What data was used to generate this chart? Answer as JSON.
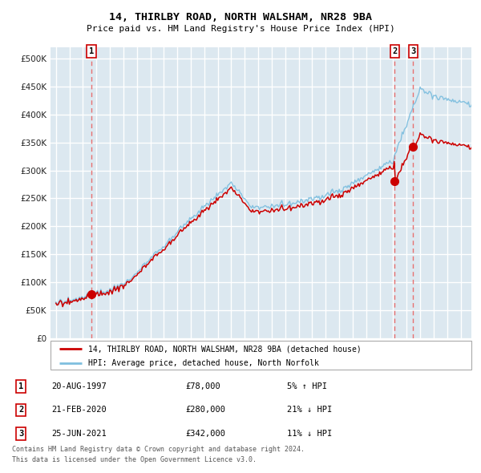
{
  "title": "14, THIRLBY ROAD, NORTH WALSHAM, NR28 9BA",
  "subtitle": "Price paid vs. HM Land Registry's House Price Index (HPI)",
  "legend_line1": "14, THIRLBY ROAD, NORTH WALSHAM, NR28 9BA (detached house)",
  "legend_line2": "HPI: Average price, detached house, North Norfolk",
  "footer1": "Contains HM Land Registry data © Crown copyright and database right 2024.",
  "footer2": "This data is licensed under the Open Government Licence v3.0.",
  "transactions": [
    {
      "num": "1",
      "date": "20-AUG-1997",
      "price": "£78,000",
      "pct": "5% ↑ HPI"
    },
    {
      "num": "2",
      "date": "21-FEB-2020",
      "price": "£280,000",
      "pct": "21% ↓ HPI"
    },
    {
      "num": "3",
      "date": "25-JUN-2021",
      "price": "£342,000",
      "pct": "11% ↓ HPI"
    }
  ],
  "t1_year": 1997.636,
  "t2_year": 2020.122,
  "t3_year": 2021.479,
  "t1_price": 78000,
  "t2_price": 280000,
  "t3_price": 342000,
  "hpi_color": "#7fbfdf",
  "price_color": "#cc0000",
  "dashed_color": "#e87070",
  "bg_color": "#dce8f0",
  "grid_color": "#ffffff",
  "ylim": [
    0,
    520000
  ],
  "xlim_start": 1994.6,
  "xlim_end": 2025.8,
  "yticks": [
    0,
    50000,
    100000,
    150000,
    200000,
    250000,
    300000,
    350000,
    400000,
    450000,
    500000
  ]
}
